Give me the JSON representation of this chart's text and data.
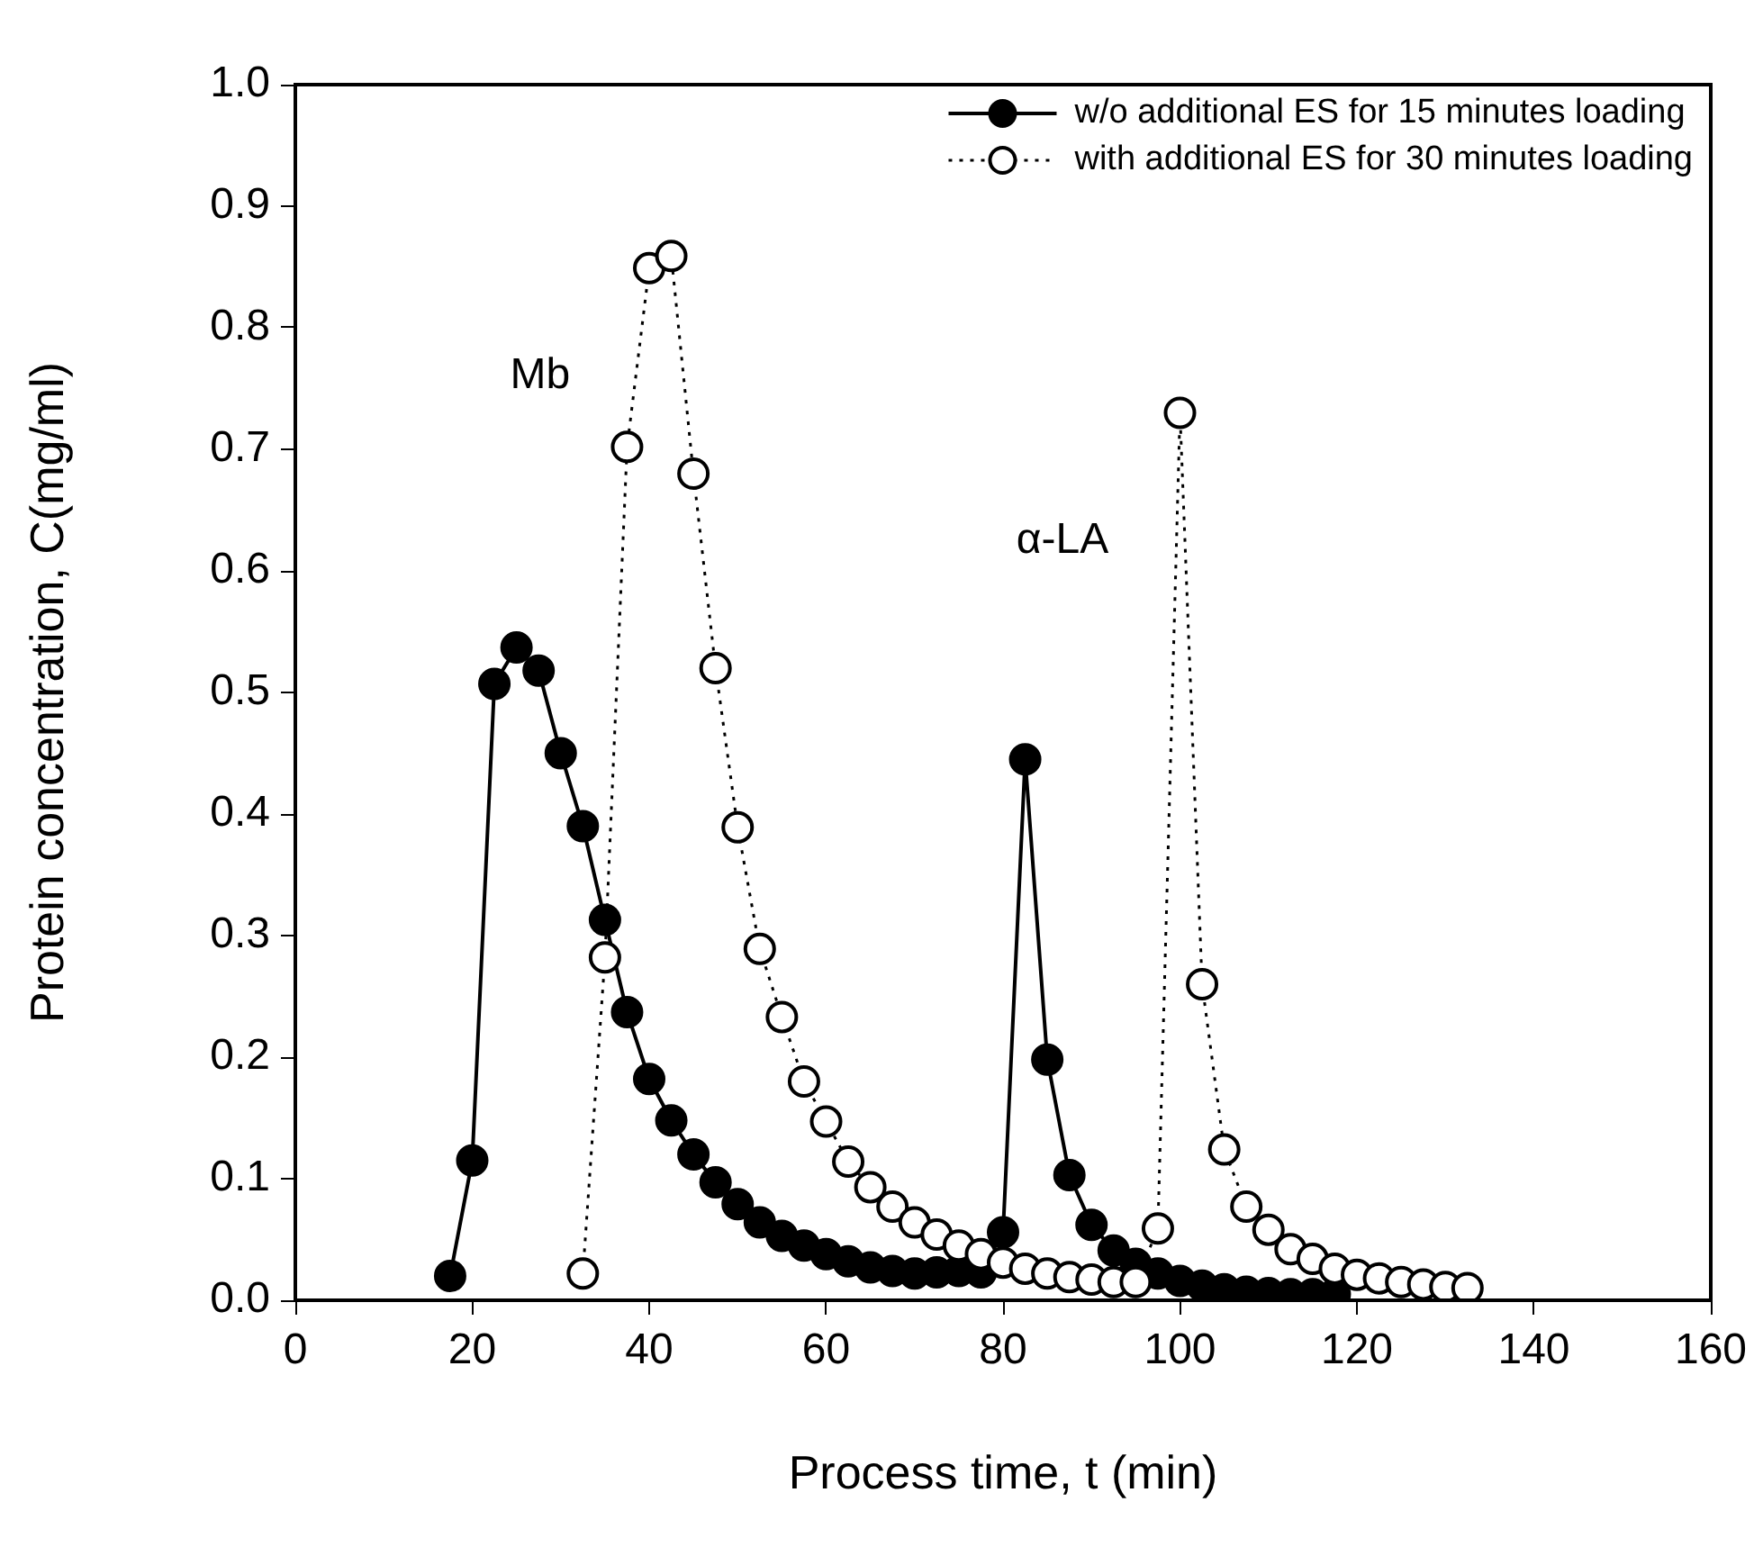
{
  "chart_data": {
    "type": "line",
    "xlabel": "Process time, t (min)",
    "ylabel": "Protein concentration, C(mg/ml)",
    "xlim": [
      0,
      160
    ],
    "xticks": [
      0,
      20,
      40,
      60,
      80,
      100,
      120,
      140,
      160
    ],
    "ylim": [
      0,
      1
    ],
    "yticks": [
      {
        "value": 0,
        "label": "0.0"
      },
      0.1,
      0.2,
      0.3,
      0.4,
      0.5,
      0.6,
      0.7,
      0.8,
      0.9,
      {
        "value": 1,
        "label": "1.0"
      }
    ],
    "grid": false,
    "legend": "top right",
    "marker": "circle",
    "series": [
      {
        "name": "w/o additional ES for 15 minutes loading",
        "color": "#000000",
        "line_style": "solid",
        "x": [
          17.5,
          20,
          22.5,
          25,
          27.5,
          30,
          32.5,
          35,
          37.5,
          40,
          42.5,
          45,
          47.5,
          50,
          52.5,
          55,
          57.5,
          60,
          62.5,
          65,
          67.5,
          70,
          72.5,
          75,
          77.5,
          80,
          82.5,
          85,
          87.5,
          90,
          92.5,
          95,
          97.5,
          100,
          102.5,
          105,
          107.5,
          110,
          112.5,
          115,
          117.5
        ],
        "values": [
          0.02,
          0.115,
          0.507,
          0.537,
          0.518,
          0.45,
          0.39,
          0.313,
          0.237,
          0.182,
          0.148,
          0.12,
          0.097,
          0.079,
          0.064,
          0.053,
          0.045,
          0.038,
          0.032,
          0.027,
          0.024,
          0.022,
          0.023,
          0.024,
          0.023,
          0.056,
          0.445,
          0.198,
          0.103,
          0.062,
          0.041,
          0.03,
          0.022,
          0.016,
          0.012,
          0.009,
          0.007,
          0.006,
          0.005,
          0.005,
          0.005
        ]
      },
      {
        "name": "with additional ES for 30 minutes loading",
        "color": "#000000",
        "line_style": "dotted",
        "x": [
          32.5,
          35,
          37.5,
          40,
          42.5,
          45,
          47.5,
          50,
          52.5,
          55,
          57.5,
          60,
          62.5,
          65,
          67.5,
          70,
          72.5,
          75,
          77.5,
          80,
          82.5,
          85,
          87.5,
          90,
          92.5,
          95,
          97.5,
          100,
          102.5,
          105,
          107.5,
          110,
          112.5,
          115,
          117.5,
          120,
          122.5,
          125,
          127.5,
          130,
          132.5
        ],
        "values": [
          0.022,
          0.282,
          0.702,
          0.849,
          0.859,
          0.68,
          0.52,
          0.389,
          0.289,
          0.233,
          0.18,
          0.147,
          0.114,
          0.093,
          0.077,
          0.064,
          0.054,
          0.045,
          0.038,
          0.031,
          0.026,
          0.022,
          0.019,
          0.017,
          0.015,
          0.015,
          0.059,
          0.73,
          0.26,
          0.124,
          0.077,
          0.058,
          0.042,
          0.034,
          0.026,
          0.021,
          0.018,
          0.015,
          0.013,
          0.011,
          0.01
        ]
      }
    ],
    "annotations": [
      "Mb",
      "α-LA"
    ]
  }
}
